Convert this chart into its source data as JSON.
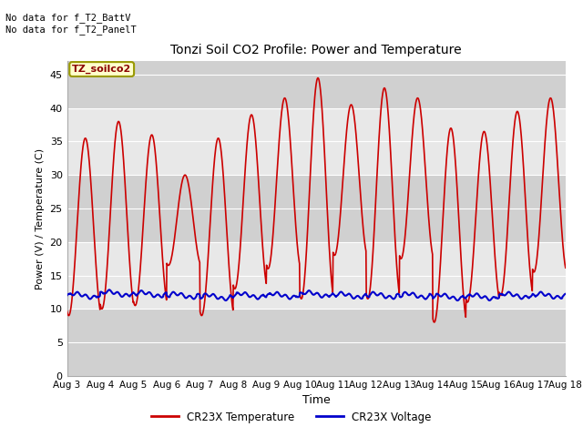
{
  "title": "Tonzi Soil CO2 Profile: Power and Temperature",
  "ylabel": "Power (V) / Temperature (C)",
  "xlabel": "Time",
  "top_left_text": "No data for f_T2_BattV\nNo data for f_T2_PanelT",
  "box_label": "TZ_soilco2",
  "ylim": [
    0,
    47
  ],
  "yticks": [
    0,
    5,
    10,
    15,
    20,
    25,
    30,
    35,
    40,
    45
  ],
  "x_start_day": 3,
  "x_end_day": 18,
  "legend_entries": [
    "CR23X Temperature",
    "CR23X Voltage"
  ],
  "legend_colors": [
    "#cc0000",
    "#0000cc"
  ],
  "temp_color": "#cc0000",
  "voltage_color": "#0000cc",
  "fig_bg_color": "#ffffff",
  "plot_bg_color": "#e8e8e8",
  "band_color": "#d0d0d0",
  "grid_color": "#ffffff",
  "box_bg": "#ffffcc",
  "box_border": "#999900",
  "xticklabels": [
    "Aug 3",
    "Aug 4",
    "Aug 5",
    "Aug 6",
    "Aug 7",
    "Aug 8",
    "Aug 9",
    "Aug 10",
    "Aug 11",
    "Aug 12",
    "Aug 13",
    "Aug 14",
    "Aug 15",
    "Aug 16",
    "Aug 17",
    "Aug 18"
  ],
  "xtick_positions": [
    3,
    4,
    5,
    6,
    7,
    8,
    9,
    10,
    11,
    12,
    13,
    14,
    15,
    16,
    17,
    18
  ],
  "temp_peaks": [
    35.5,
    38.0,
    36.0,
    30.0,
    35.5,
    39.0,
    41.5,
    44.5,
    40.5,
    43.0,
    41.5,
    37.0,
    36.5,
    39.5,
    41.5
  ],
  "temp_troughs": [
    9.0,
    10.0,
    10.5,
    16.5,
    9.0,
    13.0,
    16.0,
    11.5,
    18.0,
    11.5,
    17.5,
    8.0,
    11.0,
    12.0,
    15.5
  ],
  "volt_base": [
    12.0,
    12.3,
    12.2,
    12.0,
    11.8,
    12.0,
    12.0,
    12.2,
    12.0,
    12.0,
    12.0,
    11.8,
    11.8,
    12.0,
    12.0
  ]
}
